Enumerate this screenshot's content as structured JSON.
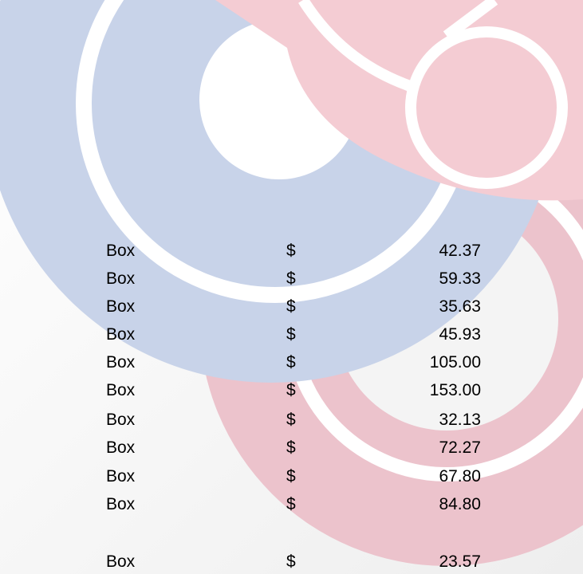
{
  "rows": [
    {
      "unit": "Box",
      "currency": "$",
      "price": "42.37"
    },
    {
      "unit": "Box",
      "currency": "$",
      "price": "59.33"
    },
    {
      "unit": "Box",
      "currency": "$",
      "price": "35.63"
    },
    {
      "unit": "Box",
      "currency": "$",
      "price": "45.93"
    },
    {
      "unit": "Box",
      "currency": "$",
      "price": "105.00"
    },
    {
      "unit": "Box",
      "currency": "$",
      "price": "153.00"
    },
    {
      "unit": "Box",
      "currency": "$",
      "price": "32.13"
    },
    {
      "unit": "Box",
      "currency": "$",
      "price": "72.27"
    },
    {
      "unit": "Box",
      "currency": "$",
      "price": "67.80"
    },
    {
      "unit": "Box",
      "currency": "$",
      "price": "84.80"
    },
    {
      "unit": "Box",
      "currency": "$",
      "price": "23.57"
    }
  ]
}
